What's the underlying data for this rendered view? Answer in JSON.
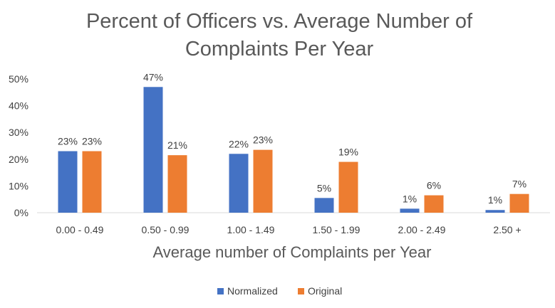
{
  "chart_data": {
    "type": "bar",
    "title_lines": [
      "Percent of Officers vs. Average Number of",
      "Complaints Per Year"
    ],
    "xlabel": "Average number of Complaints per Year",
    "ylabel": "",
    "ylim": [
      0,
      50
    ],
    "yticks": [
      0,
      10,
      20,
      30,
      40,
      50
    ],
    "ytick_labels": [
      "0%",
      "10%",
      "20%",
      "30%",
      "40%",
      "50%"
    ],
    "categories": [
      "0.00 - 0.49",
      "0.50 - 0.99",
      "1.00 - 1.49",
      "1.50 - 1.99",
      "2.00 - 2.49",
      "2.50 +"
    ],
    "series": [
      {
        "name": "Normalized",
        "color": "#4472C4",
        "values": [
          23,
          47,
          22,
          5.5,
          1.5,
          1
        ],
        "labels": [
          "23%",
          "47%",
          "22%",
          "5%",
          "1%",
          "1%"
        ]
      },
      {
        "name": "Original",
        "color": "#ED7D31",
        "values": [
          23,
          21.5,
          23.5,
          19,
          6.5,
          7
        ],
        "labels": [
          "23%",
          "21%",
          "23%",
          "19%",
          "6%",
          "7%"
        ]
      }
    ],
    "grid": false,
    "legend_position": "bottom"
  }
}
